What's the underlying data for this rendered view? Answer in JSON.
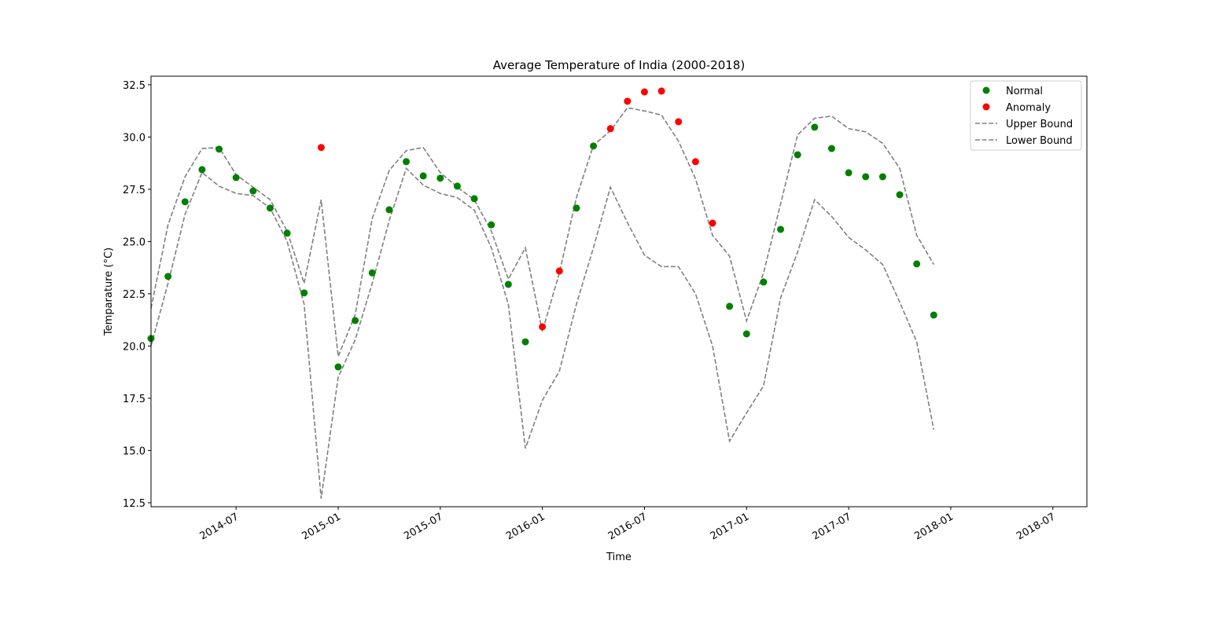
{
  "chart_data": {
    "type": "scatter_line",
    "title": "Average Temperature of India (2000-2018)",
    "xlabel": "Time",
    "ylabel": "Temparature (°C)",
    "x": [
      "2014-02",
      "2014-03",
      "2014-04",
      "2014-05",
      "2014-06",
      "2014-07",
      "2014-08",
      "2014-09",
      "2014-10",
      "2014-11",
      "2014-12",
      "2015-01",
      "2015-02",
      "2015-03",
      "2015-04",
      "2015-05",
      "2015-06",
      "2015-07",
      "2015-08",
      "2015-09",
      "2015-10",
      "2015-11",
      "2015-12",
      "2016-01",
      "2016-02",
      "2016-03",
      "2016-04",
      "2016-05",
      "2016-06",
      "2016-07",
      "2016-08",
      "2016-09",
      "2016-10",
      "2016-11",
      "2016-12",
      "2017-01",
      "2017-02",
      "2017-03",
      "2017-04",
      "2017-05",
      "2017-06",
      "2017-07",
      "2017-08",
      "2017-09",
      "2017-10",
      "2017-11",
      "2017-12"
    ],
    "series": [
      {
        "name": "Normal",
        "kind": "marker",
        "color": "#008000",
        "values": [
          20.36,
          23.33,
          26.9,
          28.44,
          29.42,
          28.06,
          27.42,
          26.6,
          25.4,
          22.54,
          null,
          19.0,
          21.22,
          23.5,
          26.52,
          28.82,
          28.14,
          28.03,
          27.65,
          27.05,
          25.8,
          22.95,
          20.2,
          null,
          null,
          26.6,
          29.57,
          null,
          null,
          null,
          null,
          null,
          null,
          null,
          21.9,
          20.58,
          23.06,
          25.58,
          29.15,
          30.47,
          29.45,
          28.29,
          28.1,
          28.1,
          27.24,
          23.93,
          21.48
        ]
      },
      {
        "name": "Anomaly",
        "kind": "marker",
        "color": "#ff0000",
        "values": [
          null,
          null,
          null,
          null,
          null,
          null,
          null,
          null,
          null,
          null,
          29.5,
          null,
          null,
          null,
          null,
          null,
          null,
          null,
          null,
          null,
          null,
          null,
          null,
          20.92,
          23.59,
          null,
          null,
          30.4,
          31.71,
          32.16,
          32.2,
          30.73,
          28.82,
          25.88,
          null,
          null,
          null,
          null,
          null,
          null,
          null,
          null,
          null,
          null,
          null,
          null,
          null
        ]
      },
      {
        "name": "Upper Bound",
        "kind": "dashed",
        "color": "#808080",
        "values": [
          21.8,
          25.8,
          28.1,
          29.45,
          29.5,
          28.2,
          27.6,
          27.0,
          25.5,
          23.0,
          27.0,
          19.5,
          21.5,
          26.1,
          28.4,
          29.35,
          29.5,
          28.3,
          27.6,
          27.0,
          25.5,
          23.2,
          24.7,
          20.7,
          23.5,
          27.1,
          29.6,
          30.3,
          31.4,
          31.25,
          31.05,
          29.8,
          28.0,
          25.3,
          24.3,
          21.2,
          23.5,
          26.8,
          30.1,
          30.9,
          31.0,
          30.4,
          30.25,
          29.7,
          28.5,
          25.3,
          23.9
        ]
      },
      {
        "name": "Lower Bound",
        "kind": "dashed",
        "color": "#808080",
        "values": [
          20.0,
          23.0,
          26.3,
          28.3,
          27.65,
          27.3,
          27.2,
          26.6,
          25.0,
          22.0,
          12.7,
          18.5,
          20.3,
          23.0,
          26.0,
          28.5,
          27.7,
          27.3,
          27.1,
          26.5,
          24.7,
          22.0,
          15.1,
          17.4,
          18.8,
          22.0,
          24.7,
          27.6,
          25.9,
          24.35,
          23.8,
          23.8,
          22.5,
          20.0,
          15.45,
          16.8,
          18.1,
          22.3,
          24.5,
          27.0,
          26.2,
          25.2,
          24.6,
          23.9,
          22.1,
          20.2,
          16.0
        ]
      }
    ],
    "xlim": [
      "2014-02",
      "2018-09"
    ],
    "xticks": [
      "2014-07",
      "2015-01",
      "2015-07",
      "2016-01",
      "2016-07",
      "2017-01",
      "2017-07",
      "2018-01",
      "2018-07"
    ],
    "ylim": [
      12.31,
      32.91
    ],
    "yticks": [
      12.5,
      {
        "value": 15,
        "label": "15.0"
      },
      17.5,
      {
        "value": 20,
        "label": "20.0"
      },
      22.5,
      {
        "value": 25,
        "label": "25.0"
      },
      27.5,
      {
        "value": 30,
        "label": "30.0"
      },
      32.5
    ],
    "legend": "upper right"
  }
}
